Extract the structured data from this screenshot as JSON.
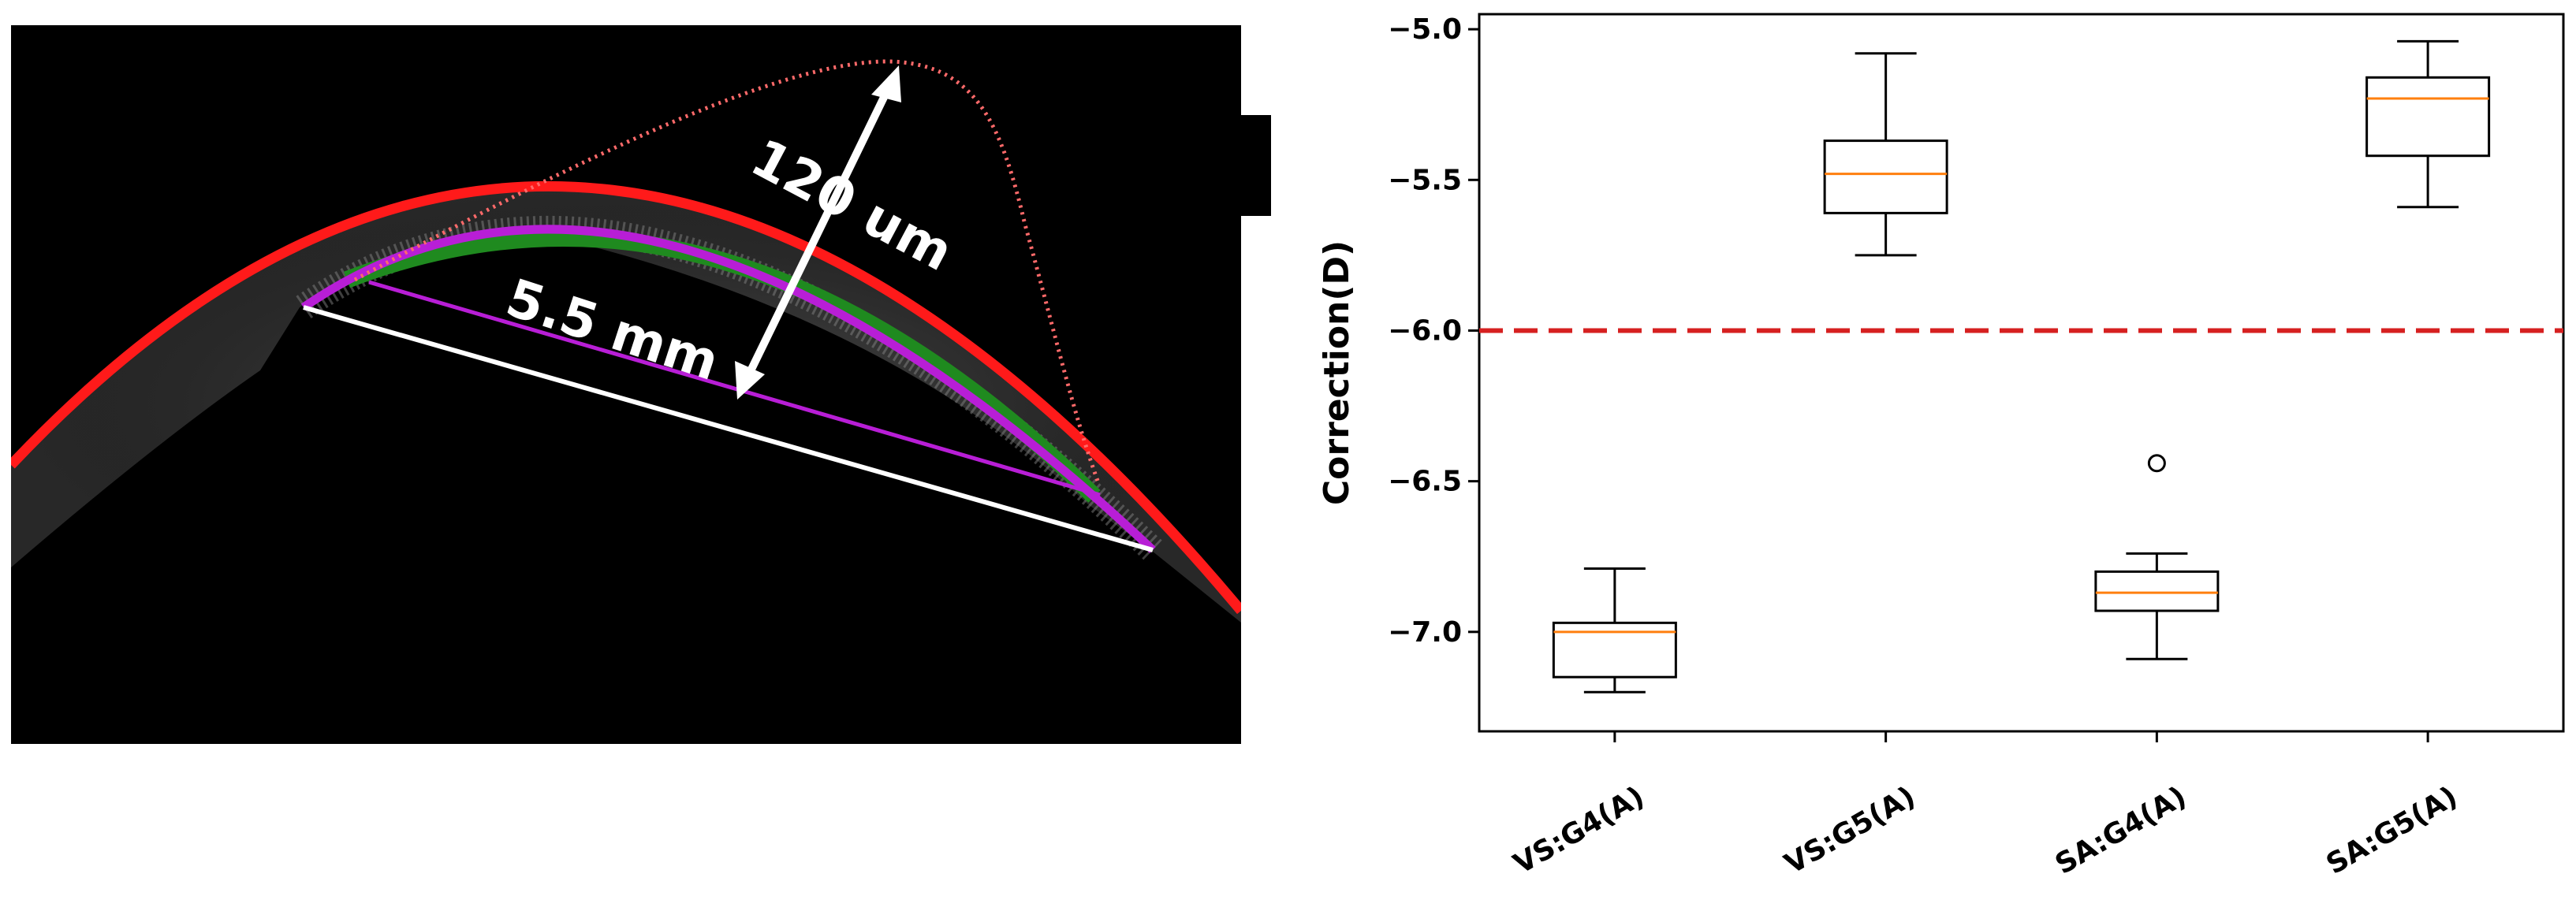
{
  "oct_image": {
    "labels": {
      "height_label": "120 um",
      "width_label": "5.5 mm"
    },
    "colors": {
      "background": "#000000",
      "anterior_surface": "#ff1a1a",
      "posterior_surface_fit": "#b81ed6",
      "tissue_band": "#1f8a1f",
      "chord": "#ffffff",
      "thickness_profile": "#ff6a6a"
    }
  },
  "chart_data": {
    "type": "box",
    "title": "",
    "xlabel": "",
    "ylabel": "Correction(D)",
    "ylim": [
      -7.33,
      -4.95
    ],
    "yticks": [
      -5.0,
      -5.5,
      -6.0,
      -6.5,
      -7.0
    ],
    "ytick_labels": [
      "−5.0",
      "−5.5",
      "−6.0",
      "−6.5",
      "−7.0"
    ],
    "categories": [
      "VS:G4(A)",
      "VS:G5(A)",
      "SA:G4(A)",
      "SA:G5(A)"
    ],
    "boxes": [
      {
        "name": "VS:G4(A)",
        "whisker_low": -7.2,
        "q1": -7.15,
        "median": -7.0,
        "q3": -6.97,
        "whisker_high": -6.79,
        "outliers": []
      },
      {
        "name": "VS:G5(A)",
        "whisker_low": -5.75,
        "q1": -5.61,
        "median": -5.48,
        "q3": -5.37,
        "whisker_high": -5.08,
        "outliers": []
      },
      {
        "name": "SA:G4(A)",
        "whisker_low": -7.09,
        "q1": -6.93,
        "median": -6.87,
        "q3": -6.8,
        "whisker_high": -6.74,
        "outliers": [
          -6.44
        ]
      },
      {
        "name": "SA:G5(A)",
        "whisker_low": -5.59,
        "q1": -5.42,
        "median": -5.23,
        "q3": -5.16,
        "whisker_high": -5.04,
        "outliers": []
      }
    ],
    "reference_line": {
      "y": -6.0,
      "style": "dashed",
      "color": "#d62020"
    },
    "box_color": "#000000",
    "median_color": "#ff7f0e",
    "grid": false
  }
}
